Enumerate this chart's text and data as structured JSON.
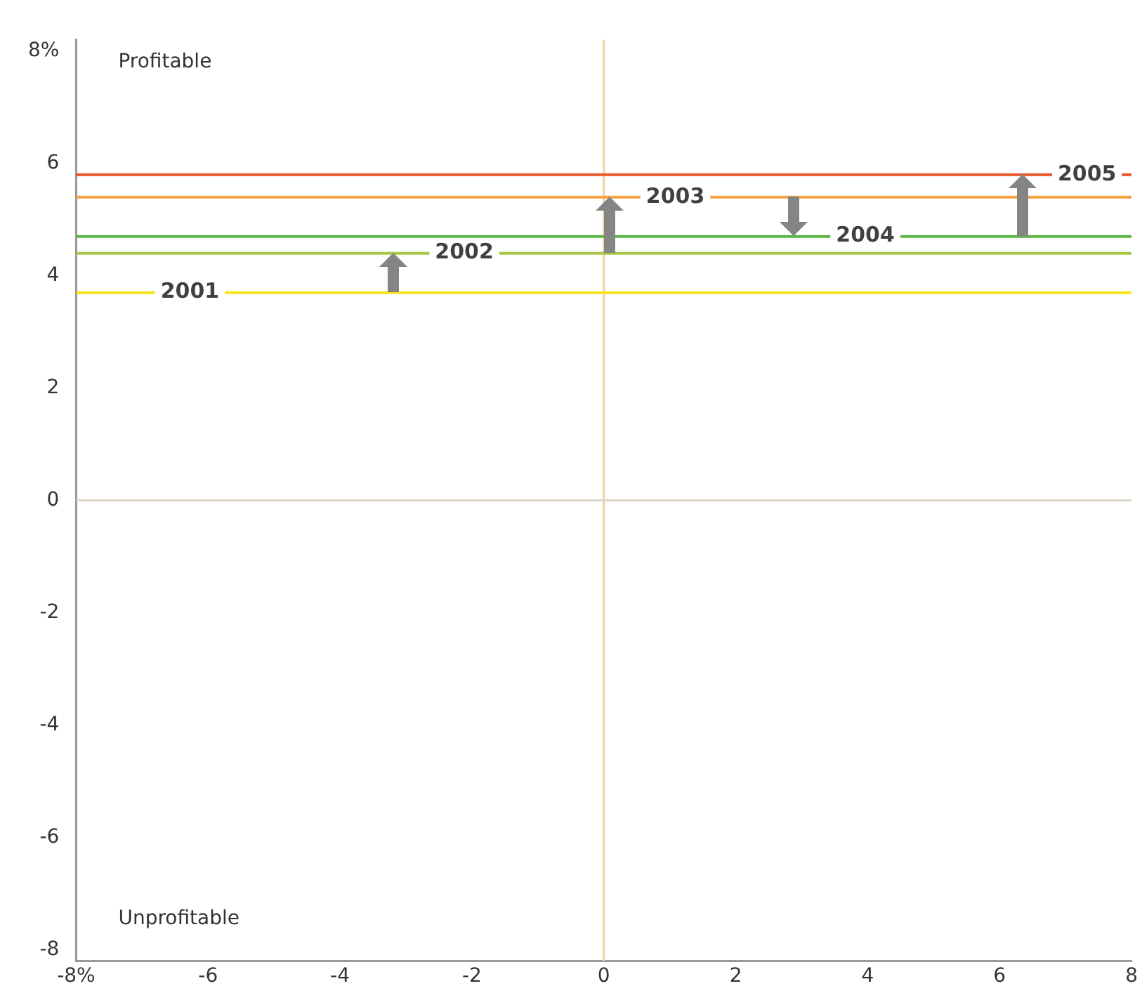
{
  "chart_data": {
    "type": "line",
    "xlim": [
      -8,
      8
    ],
    "ylim": [
      -8.2,
      8.2
    ],
    "xticks": [
      {
        "value": -8,
        "label": "-8%"
      },
      -6,
      -4,
      -2,
      0,
      2,
      4,
      6,
      8
    ],
    "yticks": [
      -8,
      -6,
      -4,
      -2,
      0,
      2,
      4,
      6,
      {
        "value": 8,
        "label": "8%"
      }
    ],
    "x": [
      -8,
      8
    ],
    "series": [
      {
        "name": "2001",
        "color": "#f7e21b",
        "values": [
          3.7,
          3.7
        ]
      },
      {
        "name": "2002",
        "color": "#a9c846",
        "values": [
          4.4,
          4.4
        ]
      },
      {
        "name": "2003",
        "color": "#f3a343",
        "values": [
          5.4,
          5.4
        ]
      },
      {
        "name": "2004",
        "color": "#5cb446",
        "values": [
          4.7,
          4.7
        ]
      },
      {
        "name": "2005",
        "color": "#e8562a",
        "values": [
          5.8,
          5.8
        ]
      }
    ],
    "ref_lines": [
      {
        "axis": "x",
        "value": 0,
        "color": "#f0d2a0"
      },
      {
        "axis": "y",
        "value": 0,
        "color": "#ddd5c8"
      }
    ],
    "annotations": [
      "Profitable",
      "Unprofitable"
    ],
    "grid": false,
    "legend": false,
    "marker": "none",
    "line_style": "solid"
  }
}
